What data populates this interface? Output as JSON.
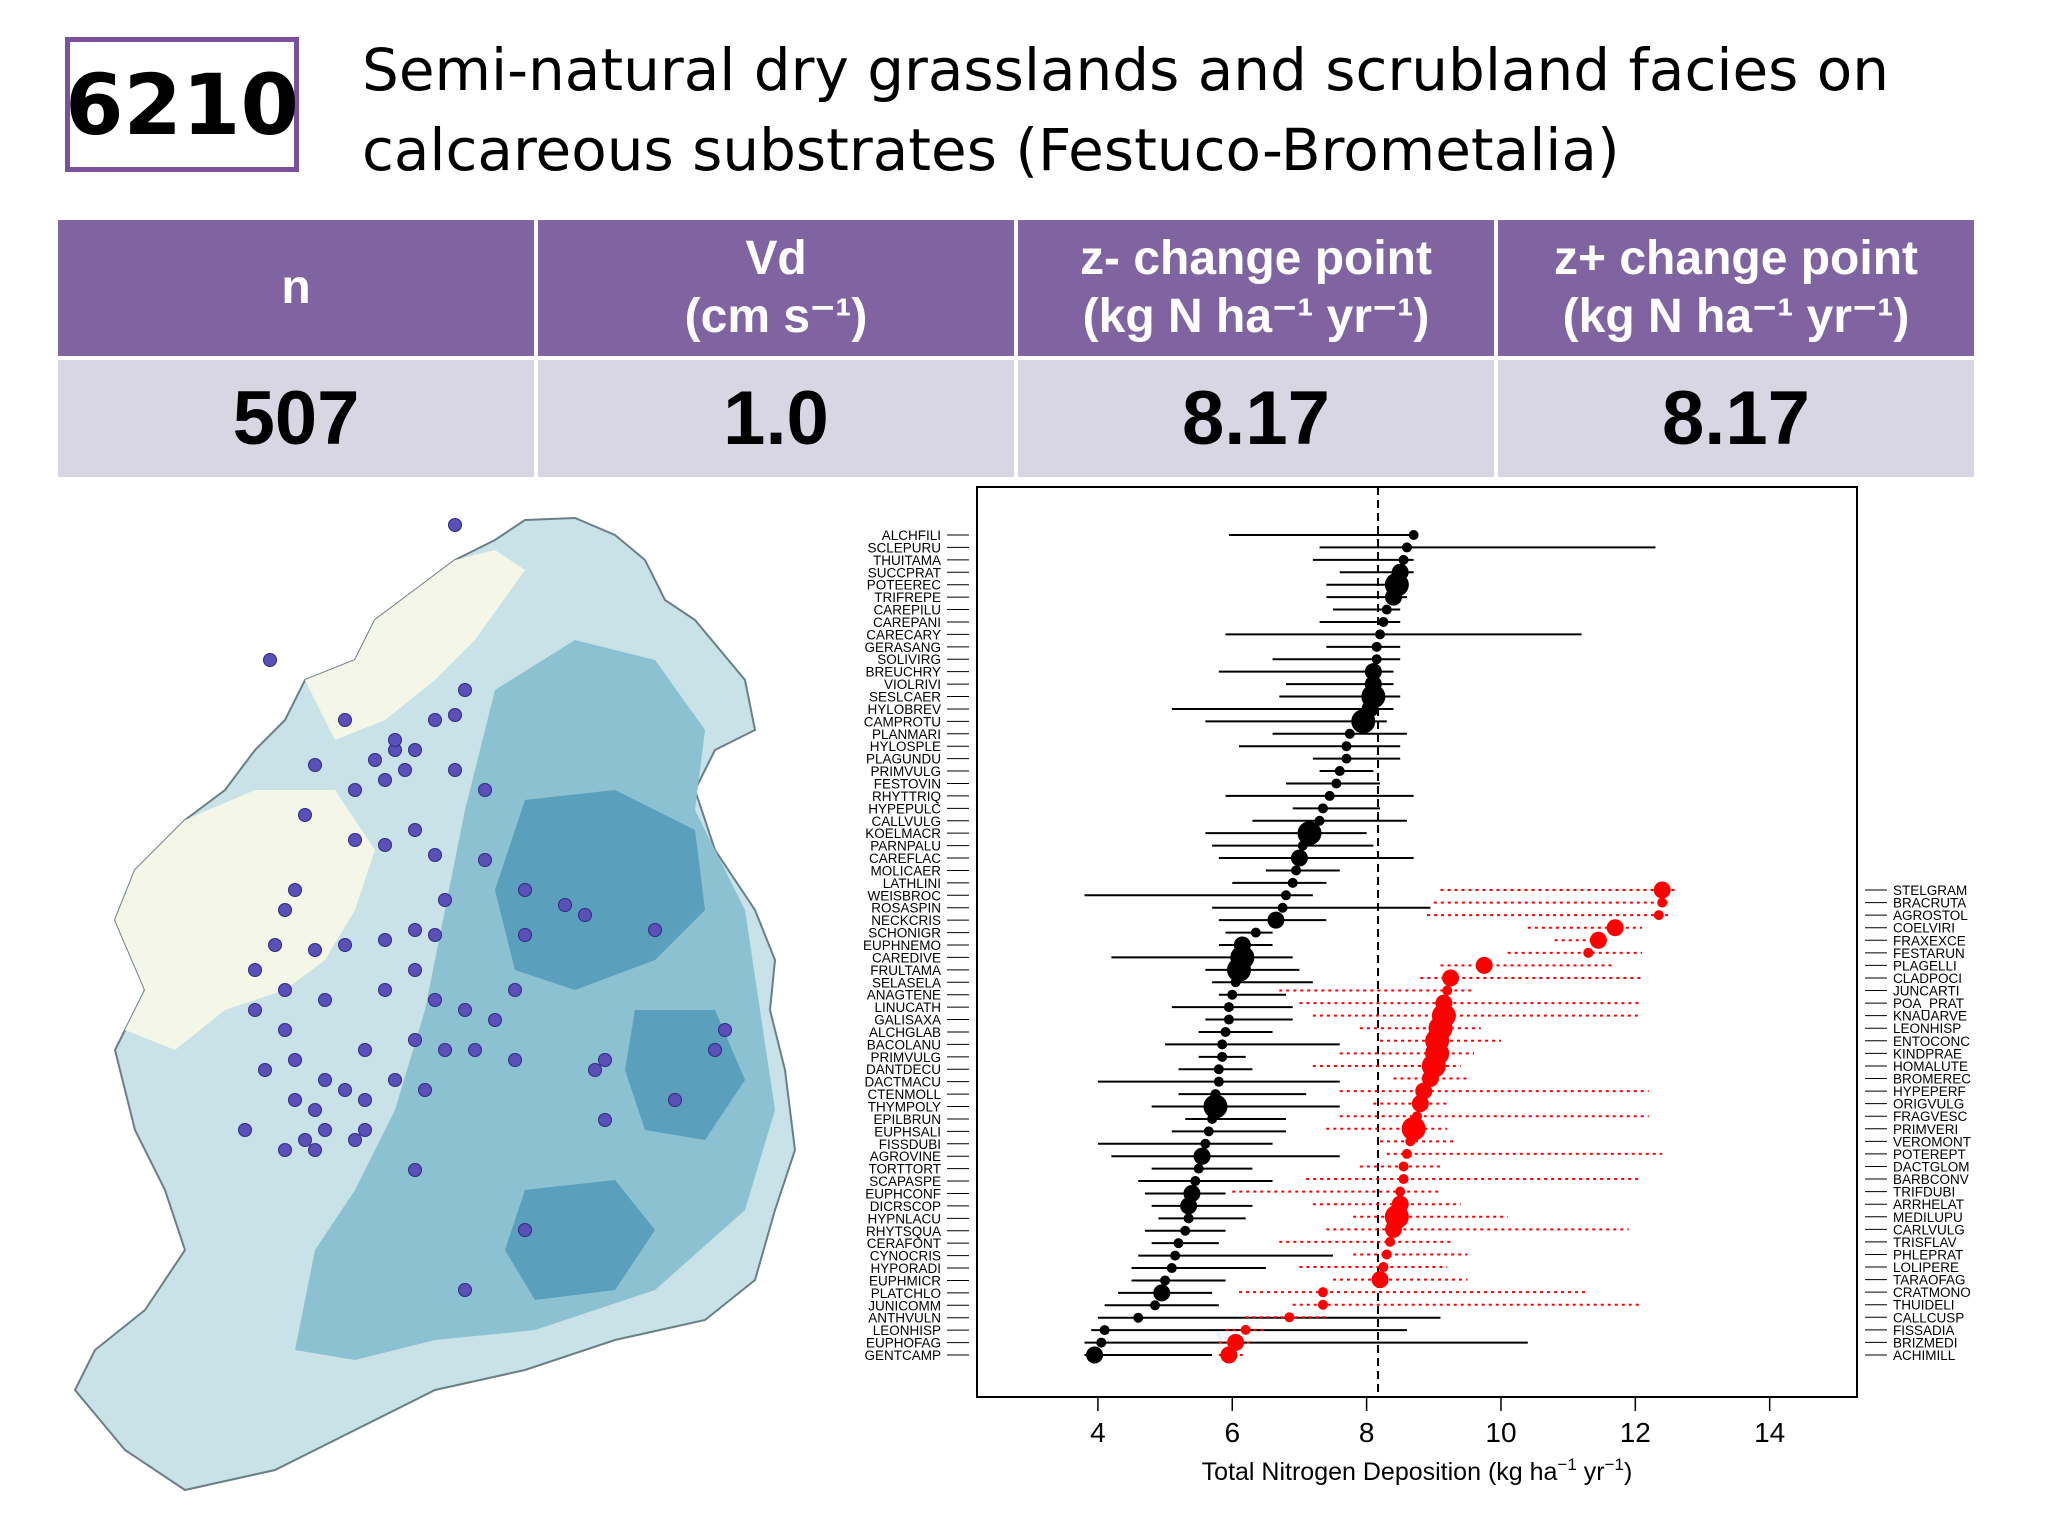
{
  "header": {
    "code": "6210",
    "title_line1": "Semi-natural dry grasslands and scrubland facies on",
    "title_line2": "calcareous substrates (Festuco-Brometalia)"
  },
  "summary": {
    "columns": [
      {
        "label": "n",
        "unit": "",
        "value": "507"
      },
      {
        "label": "Vd",
        "unit": "(cm s⁻¹)",
        "value": "1.0"
      },
      {
        "label": "z- change point",
        "unit": "(kg N ha⁻¹ yr⁻¹)",
        "value": "8.17"
      },
      {
        "label": "z+ change point",
        "unit": "(kg N ha⁻¹ yr⁻¹)",
        "value": "8.17"
      }
    ]
  },
  "colors": {
    "accent": "#8064a2",
    "header_bg": "#8064a2",
    "value_bg": "#d9d6e4",
    "map_light": "#c8e2e7",
    "map_mid": "#8bc1d0",
    "map_dark": "#5a9fbb",
    "map_background": "#f4f7e8",
    "site_dot": "#5b4fb8",
    "decreaser": "#000000",
    "increaser": "#ff0000"
  },
  "map": {
    "sites_shown": true
  },
  "chart_data": {
    "type": "scatter",
    "title": "",
    "xlabel": "Total Nitrogen Deposition (kg ha⁻¹ yr⁻¹)",
    "ylabel": "",
    "xlim": [
      2.2,
      15.3
    ],
    "xticks": [
      4,
      6,
      8,
      10,
      12,
      14
    ],
    "grid": false,
    "changepoint": 8.17,
    "decreasers": [
      {
        "name": "ALCHFILI",
        "cp": 8.7,
        "lo": 5.95,
        "hi": 8.75,
        "size": 1
      },
      {
        "name": "SCLEPURU",
        "cp": 8.6,
        "lo": 7.3,
        "hi": 12.3,
        "size": 1
      },
      {
        "name": "THUITAMA",
        "cp": 8.55,
        "lo": 7.2,
        "hi": 8.7,
        "size": 1
      },
      {
        "name": "SUCCPRAT",
        "cp": 8.5,
        "lo": 7.6,
        "hi": 8.7,
        "size": 2
      },
      {
        "name": "POTEEREC",
        "cp": 8.45,
        "lo": 7.4,
        "hi": 8.6,
        "size": 3
      },
      {
        "name": "TRIFREPE",
        "cp": 8.4,
        "lo": 7.4,
        "hi": 8.6,
        "size": 2
      },
      {
        "name": "CAREPILU",
        "cp": 8.3,
        "lo": 7.5,
        "hi": 8.5,
        "size": 1
      },
      {
        "name": "CAREPANI",
        "cp": 8.25,
        "lo": 7.3,
        "hi": 8.5,
        "size": 1
      },
      {
        "name": "CARECARY",
        "cp": 8.2,
        "lo": 5.9,
        "hi": 11.2,
        "size": 1
      },
      {
        "name": "GERASANG",
        "cp": 8.15,
        "lo": 7.4,
        "hi": 8.5,
        "size": 1
      },
      {
        "name": "SOLIVIRG",
        "cp": 8.15,
        "lo": 6.6,
        "hi": 8.5,
        "size": 1
      },
      {
        "name": "BREUCHRY",
        "cp": 8.1,
        "lo": 5.8,
        "hi": 8.4,
        "size": 2
      },
      {
        "name": "VIOLRIVI",
        "cp": 8.1,
        "lo": 6.8,
        "hi": 8.4,
        "size": 2
      },
      {
        "name": "SESLCAER",
        "cp": 8.1,
        "lo": 6.7,
        "hi": 8.5,
        "size": 3
      },
      {
        "name": "HYLOBREV",
        "cp": 8.05,
        "lo": 5.1,
        "hi": 8.4,
        "size": 2
      },
      {
        "name": "CAMPROTU",
        "cp": 7.95,
        "lo": 5.6,
        "hi": 8.3,
        "size": 3
      },
      {
        "name": "PLANMARI",
        "cp": 7.75,
        "lo": 6.6,
        "hi": 8.6,
        "size": 1
      },
      {
        "name": "HYLOSPLE",
        "cp": 7.7,
        "lo": 6.1,
        "hi": 8.5,
        "size": 1
      },
      {
        "name": "PLAGUNDU",
        "cp": 7.7,
        "lo": 7.2,
        "hi": 8.5,
        "size": 1
      },
      {
        "name": "PRIMVULG",
        "cp": 7.6,
        "lo": 7.3,
        "hi": 8.1,
        "size": 1
      },
      {
        "name": "FESTOVIN",
        "cp": 7.55,
        "lo": 6.8,
        "hi": 8.2,
        "size": 1
      },
      {
        "name": "RHYTTRIQ",
        "cp": 7.45,
        "lo": 5.9,
        "hi": 8.7,
        "size": 1
      },
      {
        "name": "HYPEPULC",
        "cp": 7.35,
        "lo": 6.9,
        "hi": 8.2,
        "size": 1
      },
      {
        "name": "CALLVULG",
        "cp": 7.3,
        "lo": 6.3,
        "hi": 8.6,
        "size": 1
      },
      {
        "name": "KOELMACR",
        "cp": 7.15,
        "lo": 5.6,
        "hi": 8.0,
        "size": 3
      },
      {
        "name": "PARNPALU",
        "cp": 7.05,
        "lo": 5.7,
        "hi": 8.1,
        "size": 1
      },
      {
        "name": "CAREFLAC",
        "cp": 7.0,
        "lo": 5.8,
        "hi": 8.7,
        "size": 2
      },
      {
        "name": "MOLICAER",
        "cp": 6.95,
        "lo": 6.5,
        "hi": 7.6,
        "size": 1
      },
      {
        "name": "LATHLINI",
        "cp": 6.9,
        "lo": 6.0,
        "hi": 7.4,
        "size": 1
      },
      {
        "name": "WEISBROC",
        "cp": 6.8,
        "lo": 3.8,
        "hi": 7.2,
        "size": 1
      },
      {
        "name": "ROSASPIN",
        "cp": 6.75,
        "lo": 5.7,
        "hi": 8.95,
        "size": 1
      },
      {
        "name": "NECKCRIS",
        "cp": 6.65,
        "lo": 5.8,
        "hi": 7.4,
        "size": 2
      },
      {
        "name": "SCHONIGR",
        "cp": 6.35,
        "lo": 5.9,
        "hi": 6.6,
        "size": 1
      },
      {
        "name": "EUPHNEMO",
        "cp": 6.15,
        "lo": 5.8,
        "hi": 6.6,
        "size": 2
      },
      {
        "name": "CAREDIVE",
        "cp": 6.15,
        "lo": 4.2,
        "hi": 6.9,
        "size": 3
      },
      {
        "name": "FRULTAMA",
        "cp": 6.1,
        "lo": 5.6,
        "hi": 7.0,
        "size": 3
      },
      {
        "name": "SELASELA",
        "cp": 6.05,
        "lo": 5.7,
        "hi": 7.2,
        "size": 1
      },
      {
        "name": "ANAGTENE",
        "cp": 6.0,
        "lo": 5.8,
        "hi": 6.8,
        "size": 1
      },
      {
        "name": "LINUCATH",
        "cp": 5.95,
        "lo": 5.1,
        "hi": 6.9,
        "size": 1
      },
      {
        "name": "GALISAXA",
        "cp": 5.95,
        "lo": 5.6,
        "hi": 6.9,
        "size": 1
      },
      {
        "name": "ALCHGLAB",
        "cp": 5.9,
        "lo": 5.5,
        "hi": 6.6,
        "size": 1
      },
      {
        "name": "BACOLANU",
        "cp": 5.85,
        "lo": 5.0,
        "hi": 7.6,
        "size": 1
      },
      {
        "name": "PRIMVULG2",
        "cp": 5.85,
        "lo": 5.5,
        "hi": 6.2,
        "size": 1
      },
      {
        "name": "DANTDECU",
        "cp": 5.8,
        "lo": 5.2,
        "hi": 6.3,
        "size": 1
      },
      {
        "name": "DACTMACU",
        "cp": 5.8,
        "lo": 4.0,
        "hi": 7.6,
        "size": 1
      },
      {
        "name": "CTENMOLL",
        "cp": 5.75,
        "lo": 5.2,
        "hi": 7.1,
        "size": 1
      },
      {
        "name": "THYMPOLY",
        "cp": 5.75,
        "lo": 4.8,
        "hi": 7.6,
        "size": 3
      },
      {
        "name": "EPILBRUN",
        "cp": 5.7,
        "lo": 5.3,
        "hi": 6.8,
        "size": 1
      },
      {
        "name": "EUPHSALI",
        "cp": 5.65,
        "lo": 5.1,
        "hi": 6.8,
        "size": 1
      },
      {
        "name": "FISSDUBI",
        "cp": 5.6,
        "lo": 4.0,
        "hi": 6.6,
        "size": 1
      },
      {
        "name": "AGROVINE",
        "cp": 5.55,
        "lo": 4.2,
        "hi": 7.6,
        "size": 2
      },
      {
        "name": "TORTTORT",
        "cp": 5.5,
        "lo": 4.8,
        "hi": 6.3,
        "size": 1
      },
      {
        "name": "SCAPASPE",
        "cp": 5.45,
        "lo": 4.6,
        "hi": 6.6,
        "size": 1
      },
      {
        "name": "EUPHCONF",
        "cp": 5.4,
        "lo": 4.7,
        "hi": 5.9,
        "size": 2
      },
      {
        "name": "DICRSCOP",
        "cp": 5.35,
        "lo": 4.8,
        "hi": 6.3,
        "size": 2
      },
      {
        "name": "HYPNLACU",
        "cp": 5.35,
        "lo": 4.9,
        "hi": 6.2,
        "size": 1
      },
      {
        "name": "RHYTSQUA",
        "cp": 5.3,
        "lo": 4.7,
        "hi": 5.9,
        "size": 1
      },
      {
        "name": "CERAFONT",
        "cp": 5.2,
        "lo": 4.8,
        "hi": 5.8,
        "size": 1
      },
      {
        "name": "CYNOCRIS",
        "cp": 5.15,
        "lo": 4.6,
        "hi": 7.5,
        "size": 1
      },
      {
        "name": "HYPORADI",
        "cp": 5.1,
        "lo": 4.5,
        "hi": 6.5,
        "size": 1
      },
      {
        "name": "EUPHMICR",
        "cp": 5.0,
        "lo": 4.5,
        "hi": 5.9,
        "size": 1
      },
      {
        "name": "PLATCHLO",
        "cp": 4.95,
        "lo": 4.3,
        "hi": 5.7,
        "size": 2
      },
      {
        "name": "JUNICOMM",
        "cp": 4.85,
        "lo": 4.1,
        "hi": 5.8,
        "size": 1
      },
      {
        "name": "ANTHVULN",
        "cp": 4.6,
        "lo": 4.0,
        "hi": 9.1,
        "size": 1
      },
      {
        "name": "LEONHISP",
        "cp": 4.1,
        "lo": 3.9,
        "hi": 8.6,
        "size": 1
      },
      {
        "name": "EUPHOFAG",
        "cp": 4.05,
        "lo": 3.8,
        "hi": 10.4,
        "size": 1
      },
      {
        "name": "GENTCAMP",
        "cp": 3.95,
        "lo": 3.8,
        "hi": 5.7,
        "size": 2
      }
    ],
    "increasers": [
      {
        "name": "STELGRAM",
        "cp": 12.4,
        "lo": 9.1,
        "hi": 12.6,
        "size": 2
      },
      {
        "name": "BRACRUTA",
        "cp": 12.4,
        "lo": 9.0,
        "hi": 12.5,
        "size": 1
      },
      {
        "name": "AGROSTOL",
        "cp": 12.35,
        "lo": 8.9,
        "hi": 12.5,
        "size": 1
      },
      {
        "name": "COELVIRI",
        "cp": 11.7,
        "lo": 10.4,
        "hi": 12.1,
        "size": 2
      },
      {
        "name": "FRAXEXCE",
        "cp": 11.45,
        "lo": 10.8,
        "hi": 11.6,
        "size": 2
      },
      {
        "name": "FESTARUN",
        "cp": 11.3,
        "lo": 10.1,
        "hi": 12.1,
        "size": 1
      },
      {
        "name": "PLAGELLI",
        "cp": 9.75,
        "lo": 9.1,
        "hi": 11.7,
        "size": 2
      },
      {
        "name": "CLADPOCI",
        "cp": 9.25,
        "lo": 8.8,
        "hi": 12.1,
        "size": 2
      },
      {
        "name": "JUNCARTI",
        "cp": 9.2,
        "lo": 6.7,
        "hi": 9.6,
        "size": 1
      },
      {
        "name": "POA_PRAT",
        "cp": 9.15,
        "lo": 7.0,
        "hi": 12.1,
        "size": 2
      },
      {
        "name": "KNAUARVE",
        "cp": 9.15,
        "lo": 7.2,
        "hi": 12.1,
        "size": 3
      },
      {
        "name": "LEONHISP2",
        "cp": 9.1,
        "lo": 7.9,
        "hi": 9.7,
        "size": 3
      },
      {
        "name": "ENTOCONC",
        "cp": 9.05,
        "lo": 8.2,
        "hi": 10.0,
        "size": 3
      },
      {
        "name": "KINDPRAE",
        "cp": 9.05,
        "lo": 7.6,
        "hi": 9.6,
        "size": 3
      },
      {
        "name": "HOMALUTE",
        "cp": 9.0,
        "lo": 7.2,
        "hi": 9.4,
        "size": 3
      },
      {
        "name": "BROMEREC",
        "cp": 8.95,
        "lo": 8.4,
        "hi": 9.5,
        "size": 2
      },
      {
        "name": "HYPEPERF",
        "cp": 8.85,
        "lo": 7.6,
        "hi": 12.2,
        "size": 2
      },
      {
        "name": "ORIGVULG",
        "cp": 8.8,
        "lo": 8.1,
        "hi": 9.2,
        "size": 2
      },
      {
        "name": "FRAGVESC",
        "cp": 8.75,
        "lo": 7.6,
        "hi": 12.2,
        "size": 1
      },
      {
        "name": "PRIMVERI",
        "cp": 8.7,
        "lo": 7.4,
        "hi": 9.2,
        "size": 3
      },
      {
        "name": "VEROMONT",
        "cp": 8.65,
        "lo": 8.2,
        "hi": 9.3,
        "size": 1
      },
      {
        "name": "POTEREPT",
        "cp": 8.6,
        "lo": 8.3,
        "hi": 12.4,
        "size": 1
      },
      {
        "name": "DACTGLOM",
        "cp": 8.55,
        "lo": 7.9,
        "hi": 9.1,
        "size": 1
      },
      {
        "name": "BARBCONV",
        "cp": 8.55,
        "lo": 7.1,
        "hi": 12.1,
        "size": 1
      },
      {
        "name": "TRIFDUBI",
        "cp": 8.5,
        "lo": 6.0,
        "hi": 9.1,
        "size": 1
      },
      {
        "name": "ARRHELAT",
        "cp": 8.5,
        "lo": 7.2,
        "hi": 9.4,
        "size": 2
      },
      {
        "name": "MEDILUPU",
        "cp": 8.45,
        "lo": 7.8,
        "hi": 10.1,
        "size": 3
      },
      {
        "name": "CARLVULG",
        "cp": 8.4,
        "lo": 7.4,
        "hi": 11.9,
        "size": 2
      },
      {
        "name": "TRISFLAV",
        "cp": 8.35,
        "lo": 6.7,
        "hi": 9.3,
        "size": 1
      },
      {
        "name": "PHLEPRAT",
        "cp": 8.3,
        "lo": 7.8,
        "hi": 9.5,
        "size": 1
      },
      {
        "name": "LOLIPERE",
        "cp": 8.25,
        "lo": 7.0,
        "hi": 9.2,
        "size": 1
      },
      {
        "name": "TARAOFAG",
        "cp": 8.2,
        "lo": 7.5,
        "hi": 9.5,
        "size": 2
      },
      {
        "name": "CRATMONO",
        "cp": 7.35,
        "lo": 6.1,
        "hi": 11.3,
        "size": 1
      },
      {
        "name": "THUIDELI",
        "cp": 7.35,
        "lo": 6.9,
        "hi": 12.1,
        "size": 1
      },
      {
        "name": "CALLCUSP",
        "cp": 6.85,
        "lo": 6.2,
        "hi": 7.4,
        "size": 1
      },
      {
        "name": "FISSADIA",
        "cp": 6.2,
        "lo": 5.9,
        "hi": 6.5,
        "size": 1
      },
      {
        "name": "BRIZMEDI",
        "cp": 6.05,
        "lo": 5.8,
        "hi": 6.3,
        "size": 2
      },
      {
        "name": "ACHIMILL",
        "cp": 5.95,
        "lo": 5.8,
        "hi": 6.2,
        "size": 2
      }
    ]
  }
}
